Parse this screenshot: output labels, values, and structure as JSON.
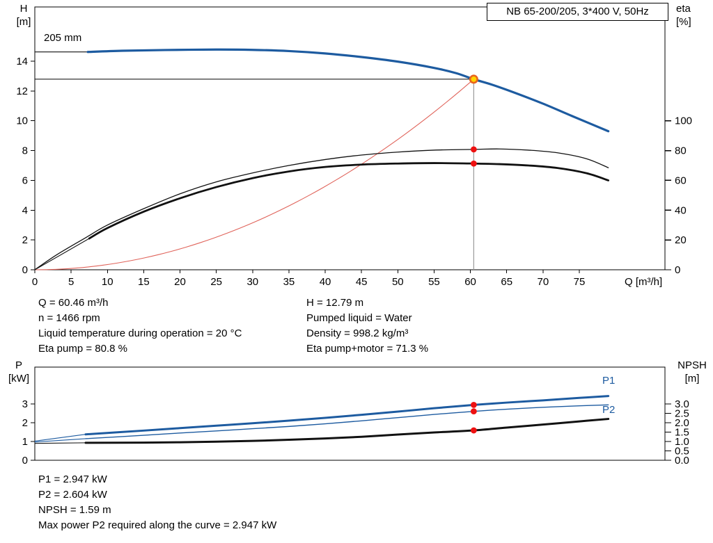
{
  "colors": {
    "blue": "#1d5ba0",
    "black": "#111111",
    "red": "#e0635a",
    "red_dot": "#ee1111",
    "duty_fill": "#ffd400",
    "duty_ring": "#e8641e",
    "guide_gray": "#9a9a9a"
  },
  "chart_data": [
    {
      "type": "line",
      "title": "NB 65-200/205, 3*400 V, 50Hz",
      "x": {
        "label": "Q [m³/h]",
        "min": 0,
        "max": 86.8,
        "ticks": [
          0,
          5,
          10,
          15,
          20,
          25,
          30,
          35,
          40,
          45,
          50,
          55,
          60,
          65,
          70,
          75
        ]
      },
      "y_left": {
        "name": "H",
        "unit": "[m]",
        "min": 0,
        "max": 17.64,
        "ticks": [
          0,
          2,
          4,
          6,
          8,
          10,
          12,
          14
        ]
      },
      "y_right": {
        "name": "eta",
        "unit": "[%]",
        "min": 0,
        "max": 176.4,
        "ticks": [
          0,
          20,
          40,
          60,
          80,
          100
        ]
      },
      "duty_point": {
        "q": 60.46,
        "h": 12.79
      },
      "guides": {
        "q_value": 60.46,
        "h_value": 12.79
      },
      "series": [
        {
          "name": "system-curve",
          "color": "red",
          "width": 1.1,
          "axis": "left",
          "generator": "quadratic_to_duty"
        },
        {
          "name": "eta-pump-curve",
          "color": "black",
          "width": 1.3,
          "axis": "right",
          "points": [
            [
              0,
              0
            ],
            [
              3,
              10
            ],
            [
              7,
              21.5
            ],
            [
              10,
              30
            ],
            [
              15,
              41
            ],
            [
              20,
              51
            ],
            [
              25,
              59
            ],
            [
              30,
              65
            ],
            [
              35,
              70
            ],
            [
              40,
              74
            ],
            [
              45,
              77
            ],
            [
              50,
              79
            ],
            [
              55,
              80.3
            ],
            [
              60.46,
              80.8
            ],
            [
              64,
              81.1
            ],
            [
              68,
              80.3
            ],
            [
              72,
              78.5
            ],
            [
              76,
              74.5
            ],
            [
              79,
              68.5
            ]
          ]
        },
        {
          "name": "eta-pump-motor-curve",
          "color": "black",
          "width": 2.8,
          "axis": "right",
          "lead": [
            [
              0,
              0
            ],
            [
              7.5,
              21
            ]
          ],
          "points": [
            [
              7.5,
              21
            ],
            [
              10,
              28
            ],
            [
              15,
              39
            ],
            [
              20,
              48
            ],
            [
              25,
              55.5
            ],
            [
              30,
              61.5
            ],
            [
              35,
              66
            ],
            [
              40,
              69
            ],
            [
              45,
              70.6
            ],
            [
              50,
              71.3
            ],
            [
              55,
              71.6
            ],
            [
              60.46,
              71.3
            ],
            [
              64,
              70.9
            ],
            [
              68,
              70
            ],
            [
              72,
              68.3
            ],
            [
              76,
              64.8
            ],
            [
              79,
              60
            ]
          ]
        },
        {
          "name": "head-curve",
          "label": "205 mm",
          "color": "blue",
          "width": 3.2,
          "axis": "left",
          "lead": [
            [
              0,
              14.62
            ],
            [
              7.3,
              14.62
            ]
          ],
          "lead_color": "black",
          "points": [
            [
              7.3,
              14.62
            ],
            [
              12,
              14.7
            ],
            [
              18,
              14.75
            ],
            [
              25,
              14.78
            ],
            [
              30,
              14.76
            ],
            [
              35,
              14.68
            ],
            [
              40,
              14.52
            ],
            [
              45,
              14.28
            ],
            [
              50,
              13.97
            ],
            [
              55,
              13.55
            ],
            [
              58,
              13.2
            ],
            [
              60.46,
              12.79
            ],
            [
              63,
              12.42
            ],
            [
              66,
              11.9
            ],
            [
              70,
              11.15
            ],
            [
              74,
              10.32
            ],
            [
              79,
              9.3
            ]
          ]
        }
      ],
      "markers": [
        {
          "name": "duty-point-marker",
          "style": "duty",
          "axis": "left",
          "q": 60.46,
          "value": 12.79
        },
        {
          "name": "eta-pump-marker",
          "style": "red-dot",
          "axis": "right",
          "q": 60.46,
          "value": 80.8
        },
        {
          "name": "eta-pump-motor-marker",
          "style": "red-dot",
          "axis": "right",
          "q": 60.46,
          "value": 71.3
        }
      ]
    },
    {
      "type": "line",
      "x": {
        "label": "",
        "min": 0,
        "max": 86.8,
        "ticks": []
      },
      "y_left": {
        "name": "P",
        "unit": "[kW]",
        "min": 0,
        "max": 4.96,
        "ticks": [
          0,
          1,
          2,
          3
        ]
      },
      "y_right": {
        "name": "NPSH",
        "unit": "[m]",
        "min": 0,
        "max": 4.96,
        "ticks": [
          "0.0",
          "0.5",
          "1.0",
          "1.5",
          "2.0",
          "2.5",
          "3.0"
        ]
      },
      "series": [
        {
          "name": "p1-curve",
          "label": "P1",
          "color": "blue",
          "width": 3,
          "axis": "left",
          "lead": [
            [
              0,
              1.02
            ],
            [
              7,
              1.38
            ]
          ],
          "points": [
            [
              7,
              1.38
            ],
            [
              15,
              1.58
            ],
            [
              20,
              1.71
            ],
            [
              25,
              1.84
            ],
            [
              30,
              1.97
            ],
            [
              35,
              2.11
            ],
            [
              40,
              2.26
            ],
            [
              45,
              2.42
            ],
            [
              50,
              2.59
            ],
            [
              55,
              2.77
            ],
            [
              60.46,
              2.947
            ],
            [
              65,
              3.07
            ],
            [
              70,
              3.19
            ],
            [
              75,
              3.32
            ],
            [
              79,
              3.42
            ]
          ]
        },
        {
          "name": "p2-curve",
          "label": "P2",
          "color": "blue",
          "width": 1.4,
          "axis": "left",
          "lead": [
            [
              0,
              0.97
            ],
            [
              7,
              1.15
            ]
          ],
          "points": [
            [
              7,
              1.15
            ],
            [
              15,
              1.33
            ],
            [
              20,
              1.45
            ],
            [
              25,
              1.56
            ],
            [
              30,
              1.68
            ],
            [
              35,
              1.8
            ],
            [
              40,
              1.94
            ],
            [
              45,
              2.1
            ],
            [
              50,
              2.27
            ],
            [
              55,
              2.44
            ],
            [
              60.46,
              2.604
            ],
            [
              65,
              2.72
            ],
            [
              70,
              2.82
            ],
            [
              75,
              2.9
            ],
            [
              79,
              2.95
            ]
          ]
        },
        {
          "name": "npsh-curve",
          "color": "black",
          "width": 3,
          "axis": "right",
          "lead": [
            [
              0,
              0.9
            ],
            [
              7,
              0.93
            ]
          ],
          "points": [
            [
              7,
              0.93
            ],
            [
              15,
              0.94
            ],
            [
              20,
              0.96
            ],
            [
              25,
              0.99
            ],
            [
              30,
              1.03
            ],
            [
              35,
              1.09
            ],
            [
              40,
              1.16
            ],
            [
              45,
              1.25
            ],
            [
              50,
              1.37
            ],
            [
              55,
              1.48
            ],
            [
              60.46,
              1.59
            ],
            [
              65,
              1.74
            ],
            [
              70,
              1.9
            ],
            [
              75,
              2.07
            ],
            [
              79,
              2.2
            ]
          ]
        }
      ],
      "markers": [
        {
          "name": "p1-marker",
          "style": "red-dot",
          "axis": "left",
          "q": 60.46,
          "value": 2.947
        },
        {
          "name": "p2-marker",
          "style": "red-dot",
          "axis": "left",
          "q": 60.46,
          "value": 2.604
        },
        {
          "name": "npsh-marker",
          "style": "red-dot",
          "axis": "right",
          "q": 60.46,
          "value": 1.59
        }
      ]
    }
  ],
  "info_panel_top": {
    "left": [
      "Q = 60.46 m³/h",
      "n = 1466 rpm",
      "Liquid temperature during operation = 20 °C",
      "Eta pump = 80.8 %"
    ],
    "right": [
      "H = 12.79 m",
      "Pumped liquid = Water",
      "Density = 998.2 kg/m³",
      "Eta pump+motor = 71.3 %"
    ]
  },
  "info_panel_bottom": [
    "P1 = 2.947 kW",
    "P2 = 2.604 kW",
    "NPSH = 1.59 m",
    "Max power P2 required along the curve = 2.947 kW"
  ]
}
